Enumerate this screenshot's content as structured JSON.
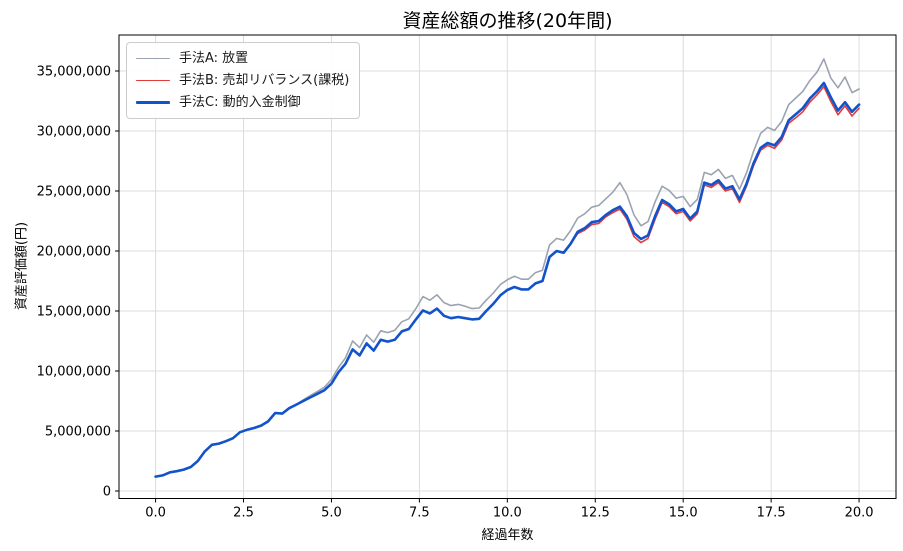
{
  "figure": {
    "title": "資産総額の推移(20年間)",
    "xlabel": "経過年数",
    "ylabel": "資産評価額(円)"
  },
  "chart_data": {
    "type": "line",
    "title": "資産総額の推移(20年間)",
    "xlabel": "経過年数",
    "ylabel": "資産評価額(円)",
    "unit": "JPY, series values stored in millions of yen",
    "grid": true,
    "legend_position": "upper left",
    "x_start": 0.0,
    "x_step": 0.2,
    "xlim": [
      -1.04,
      21.05
    ],
    "ylim_millions": [
      -0.625,
      38.0
    ],
    "x_ticks": [
      0,
      2.5,
      5,
      7.5,
      10,
      12.5,
      15,
      17.5,
      20
    ],
    "x_tick_labels": [
      "0.0",
      "2.5",
      "5.0",
      "7.5",
      "10.0",
      "12.5",
      "15.0",
      "17.5",
      "20.0"
    ],
    "y_ticks_millions": [
      0,
      5,
      10,
      15,
      20,
      25,
      30,
      35
    ],
    "y_tick_labels": [
      "0",
      "5,000,000",
      "10,000,000",
      "15,000,000",
      "20,000,000",
      "25,000,000",
      "30,000,000",
      "35,000,000"
    ],
    "series": [
      {
        "name": "手法A: 放置",
        "color": "#9ba3b1",
        "line_width": 1.6,
        "values_millions": [
          1.2,
          1.3,
          1.55,
          1.65,
          1.78,
          2.0,
          2.5,
          3.3,
          3.85,
          3.95,
          4.15,
          4.4,
          4.9,
          5.1,
          5.25,
          5.45,
          5.8,
          6.5,
          6.45,
          6.9,
          7.2,
          7.6,
          7.95,
          8.3,
          8.65,
          9.3,
          10.3,
          11.1,
          12.5,
          11.95,
          13.0,
          12.4,
          13.35,
          13.2,
          13.4,
          14.1,
          14.35,
          15.2,
          16.2,
          15.9,
          16.35,
          15.7,
          15.45,
          15.55,
          15.4,
          15.2,
          15.25,
          15.9,
          16.5,
          17.2,
          17.6,
          17.9,
          17.65,
          17.65,
          18.2,
          18.4,
          20.5,
          21.05,
          20.9,
          21.7,
          22.75,
          23.1,
          23.65,
          23.8,
          24.35,
          24.9,
          25.7,
          24.7,
          23.0,
          22.1,
          22.45,
          24.1,
          25.4,
          25.05,
          24.4,
          24.55,
          23.7,
          24.3,
          26.55,
          26.35,
          26.8,
          26.05,
          26.3,
          25.15,
          26.5,
          28.3,
          29.8,
          30.3,
          30.05,
          30.8,
          32.2,
          32.75,
          33.3,
          34.2,
          34.9,
          36.0,
          34.4,
          33.6,
          34.5,
          33.2,
          33.5
        ]
      },
      {
        "name": "手法B: 売却リバランス(課税)",
        "color": "#e23b3c",
        "line_width": 1.6,
        "values_millions": [
          1.2,
          1.3,
          1.55,
          1.65,
          1.78,
          2.0,
          2.5,
          3.3,
          3.85,
          3.95,
          4.15,
          4.4,
          4.9,
          5.1,
          5.25,
          5.45,
          5.8,
          6.5,
          6.45,
          6.9,
          7.2,
          7.5,
          7.8,
          8.1,
          8.4,
          8.95,
          9.9,
          10.6,
          11.8,
          11.3,
          12.3,
          11.7,
          12.6,
          12.45,
          12.6,
          13.3,
          13.5,
          14.3,
          15.05,
          14.8,
          15.2,
          14.6,
          14.4,
          14.5,
          14.4,
          14.3,
          14.35,
          15.0,
          15.6,
          16.3,
          16.75,
          17.0,
          16.8,
          16.8,
          17.3,
          17.5,
          19.5,
          20.0,
          19.85,
          20.6,
          21.45,
          21.75,
          22.2,
          22.3,
          22.85,
          23.2,
          23.5,
          22.65,
          21.2,
          20.7,
          21.05,
          22.65,
          24.05,
          23.7,
          23.1,
          23.3,
          22.5,
          23.1,
          25.5,
          25.3,
          25.7,
          25.0,
          25.2,
          24.05,
          25.4,
          27.1,
          28.4,
          28.8,
          28.55,
          29.25,
          30.65,
          31.1,
          31.6,
          32.4,
          33.0,
          33.7,
          32.45,
          31.35,
          32.1,
          31.25,
          31.9
        ]
      },
      {
        "name": "手法C: 動的入金制御",
        "color": "#1253cc",
        "line_width": 2.6,
        "values_millions": [
          1.2,
          1.3,
          1.55,
          1.65,
          1.78,
          2.0,
          2.5,
          3.3,
          3.85,
          3.95,
          4.15,
          4.4,
          4.9,
          5.1,
          5.25,
          5.45,
          5.8,
          6.5,
          6.45,
          6.9,
          7.2,
          7.5,
          7.8,
          8.1,
          8.4,
          8.95,
          9.9,
          10.6,
          11.8,
          11.3,
          12.3,
          11.7,
          12.6,
          12.45,
          12.6,
          13.3,
          13.5,
          14.3,
          15.05,
          14.8,
          15.2,
          14.6,
          14.4,
          14.5,
          14.4,
          14.3,
          14.35,
          15.0,
          15.6,
          16.3,
          16.75,
          17.0,
          16.8,
          16.8,
          17.3,
          17.5,
          19.5,
          20.0,
          19.85,
          20.6,
          21.6,
          21.9,
          22.4,
          22.5,
          23.0,
          23.4,
          23.7,
          22.9,
          21.5,
          21.0,
          21.3,
          22.9,
          24.25,
          23.9,
          23.3,
          23.5,
          22.7,
          23.3,
          25.7,
          25.5,
          25.9,
          25.2,
          25.4,
          24.3,
          25.6,
          27.3,
          28.6,
          29.0,
          28.8,
          29.5,
          30.9,
          31.4,
          31.9,
          32.7,
          33.3,
          34.0,
          32.8,
          31.7,
          32.4,
          31.6,
          32.2
        ]
      }
    ],
    "colors": {
      "grid": "#dcdcdc",
      "spine": "#000000",
      "background": "#ffffff"
    }
  }
}
